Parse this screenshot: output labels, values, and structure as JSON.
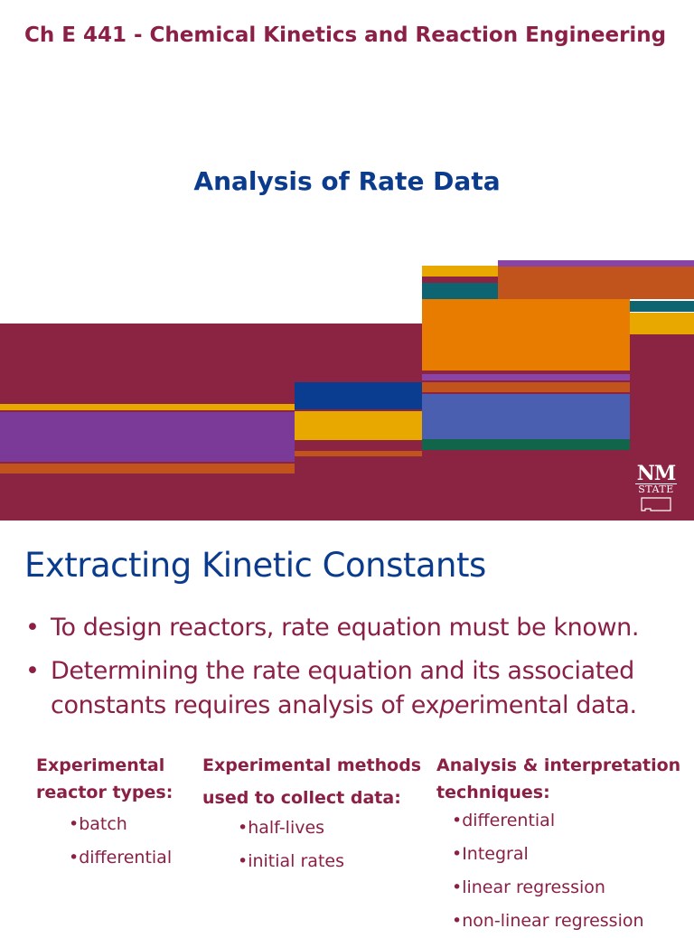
{
  "course_title": "Ch E 441 - Chemical Kinetics and Reaction Engineering",
  "slide_title": "Analysis of Rate Data",
  "logo": {
    "line1": "NM",
    "line2": "STATE"
  },
  "colors": {
    "maroon": "#8b2343",
    "purple": "#7b3a97",
    "gold": "#e8a800",
    "orange": "#e87c00",
    "rust": "#c0541c",
    "teal": "#0e6470",
    "blue": "#0a3d8f",
    "periwinkle": "#4a5fb0",
    "green": "#10654a",
    "violet": "#8a44a6"
  },
  "section_heading": "Extracting Kinetic Constants",
  "bullets": [
    {
      "text": "To design reactors, rate equation must be known."
    },
    {
      "pre": "Determining the rate equation and its associated constants requires analysis of ex",
      "em": "pe",
      "post": "rimental data."
    }
  ],
  "columns": [
    {
      "heading_line1": "Experimental",
      "heading_line2": "reactor types:",
      "items": [
        "•batch",
        "•differential"
      ]
    },
    {
      "heading_line1": "Experimental methods",
      "heading_line2": "used to collect data:",
      "items": [
        "•half-lives",
        "•initial rates"
      ]
    },
    {
      "heading_line1": "Analysis & interpretation",
      "heading_line2": "techniques:",
      "items": [
        "•differential",
        "•Integral",
        "•linear regression",
        "•non-linear regression"
      ]
    }
  ]
}
